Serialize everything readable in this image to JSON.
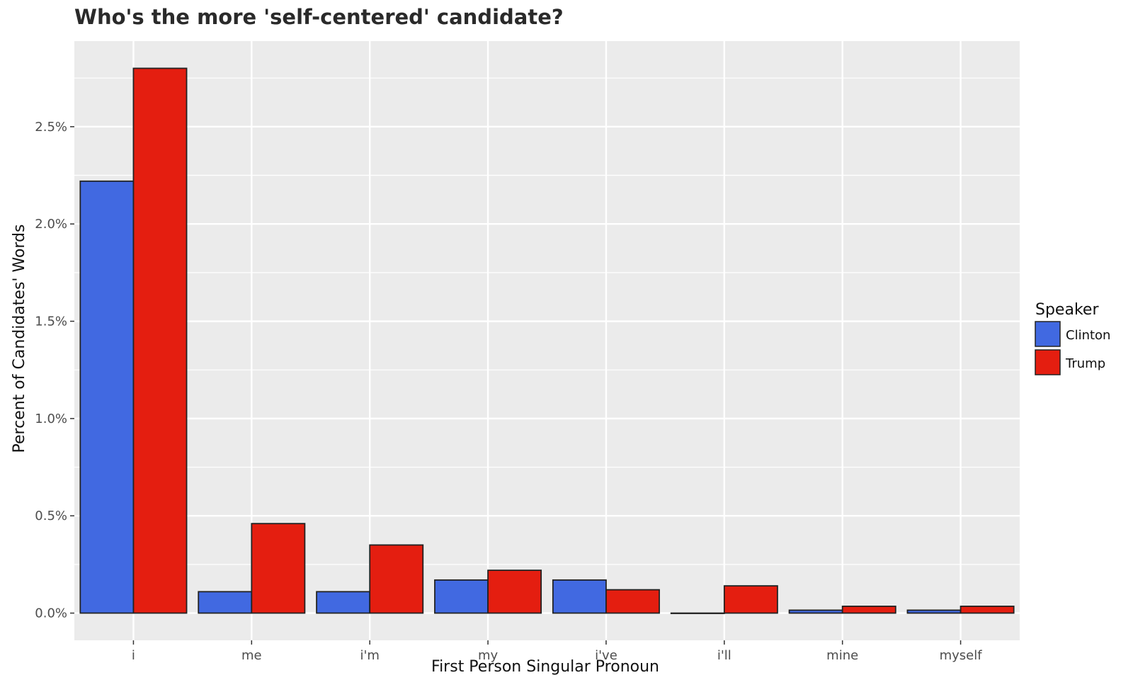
{
  "chart_data": {
    "type": "bar",
    "title": "Who's the more 'self-centered' candidate?",
    "xlabel": "First Person Singular Pronoun",
    "ylabel": "Percent of Candidates' Words",
    "categories": [
      "i",
      "me",
      "i'm",
      "my",
      "i've",
      "i'll",
      "mine",
      "myself"
    ],
    "series": [
      {
        "name": "Clinton",
        "color": "#4169E1",
        "values": [
          2.22,
          0.11,
          0.11,
          0.17,
          0.17,
          0.0,
          0.015,
          0.015
        ]
      },
      {
        "name": "Trump",
        "color": "#E41E10",
        "values": [
          2.8,
          0.46,
          0.35,
          0.22,
          0.12,
          0.14,
          0.035,
          0.035
        ]
      }
    ],
    "y_ticks": [
      0.0,
      0.5,
      1.0,
      1.5,
      2.0,
      2.5
    ],
    "y_tick_labels": [
      "0.0%",
      "0.5%",
      "1.0%",
      "1.5%",
      "2.0%",
      "2.5%"
    ],
    "ylim": [
      -0.14,
      2.94
    ],
    "grid": true,
    "legend": {
      "title": "Speaker",
      "position": "right"
    },
    "panel_background": "#EBEBEB",
    "bar_outline": "#222222"
  }
}
